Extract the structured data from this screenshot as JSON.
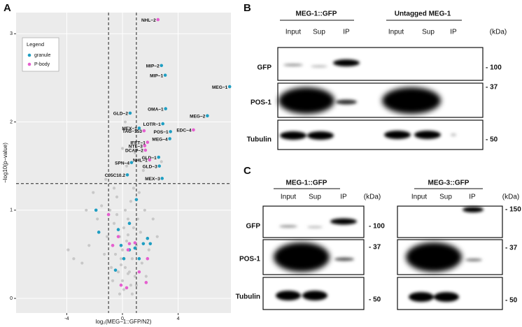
{
  "panel_labels": [
    "A",
    "B",
    "C"
  ],
  "chart_data": {
    "type": "scatter",
    "x_label": "log₂(MEG−1::GFP/N2)",
    "y_label": "−log10(p−value)",
    "xlim": [
      -7.64,
      7.79
    ],
    "ylim": [
      -0.166,
      3.24
    ],
    "xticks": [
      -4,
      0,
      4
    ],
    "yticks": [
      0,
      1,
      2,
      3
    ],
    "grid": true,
    "legend": {
      "title": "Legend",
      "position": "upper left"
    },
    "reference_lines": {
      "x": [
        -1,
        1
      ],
      "y": [
        1.301
      ]
    },
    "series": [
      {
        "name": "granule",
        "color": "#1f9ec2",
        "x": [
          7.7,
          2.8,
          3.07,
          3.1,
          6.1,
          0.55,
          2.9,
          1.2,
          3.45,
          3.4,
          2.6,
          0.65,
          2.65,
          2.85,
          0.35,
          -1.9,
          -1.7,
          -0.3,
          0.5,
          1.0,
          1.5,
          2.0,
          1.8,
          0.1,
          -0.5,
          0.5,
          1.2,
          -0.1,
          0.9
        ],
        "values": [
          2.4,
          2.64,
          2.53,
          2.15,
          2.07,
          2.1,
          1.98,
          1.93,
          1.89,
          1.81,
          1.6,
          1.54,
          1.5,
          1.36,
          1.4,
          1.0,
          0.75,
          0.78,
          0.85,
          1.12,
          0.62,
          0.62,
          0.68,
          0.45,
          0.32,
          0.55,
          0.45,
          0.6,
          0.57
        ],
        "labels": [
          "MEG−1",
          "MIP−2",
          "MIP−1",
          "OMA−1",
          "MEG−2",
          "GLD−2",
          "LOTR−1",
          "MEX−1",
          "POS−1",
          "MEG−4",
          "GLD−1",
          "SPN−4",
          "GLD−3",
          "MEX−3",
          "C05C10.2",
          null,
          null,
          null,
          null,
          null,
          null,
          null,
          null,
          null,
          null,
          null,
          null,
          null,
          null
        ]
      },
      {
        "name": "P-body",
        "color": "#e55fcf",
        "x": [
          2.55,
          5.1,
          1.55,
          1.8,
          1.65,
          1.6,
          1.95,
          -0.7,
          -0.3,
          0.5,
          0.9,
          0.4,
          1.8,
          1.7,
          -0.1,
          0.3,
          1.2,
          -1.0
        ],
        "values": [
          3.16,
          1.91,
          1.9,
          1.77,
          1.68,
          1.73,
          1.57,
          0.6,
          0.7,
          0.62,
          0.63,
          0.55,
          0.45,
          0.18,
          0.15,
          0.12,
          0.3,
          0.95
        ],
        "labels": [
          "NHL−2",
          "EDC−4",
          "TAG−153",
          "IFET−1",
          "DCAP−2",
          "NTL−3",
          "NHL−1",
          null,
          null,
          null,
          null,
          null,
          null,
          null,
          null,
          null,
          null,
          null
        ]
      }
    ],
    "background_points": {
      "color": "#c8c8c8",
      "x": [
        -3.9,
        -3.5,
        -2.9,
        -2.4,
        -2.1,
        -1.8,
        -1.5,
        -1.3,
        -1.1,
        -0.9,
        -0.8,
        -0.6,
        -0.5,
        -0.4,
        -0.3,
        -0.2,
        -0.1,
        0.0,
        0.0,
        0.1,
        0.2,
        0.2,
        0.3,
        0.4,
        0.5,
        0.6,
        0.7,
        0.8,
        0.9,
        1.0,
        1.1,
        1.3,
        1.4,
        1.6,
        1.9,
        2.2,
        2.5,
        0.1,
        -0.2,
        0.4,
        0.6,
        -0.7,
        0.8,
        1.2,
        -1.2,
        0.3,
        0.0,
        -0.4,
        0.5,
        0.2,
        1.5,
        -0.6,
        0.9,
        -2.6,
        2.8,
        0.7,
        1.0,
        -0.1,
        0.4,
        1.7
      ],
      "values": [
        0.55,
        0.45,
        0.4,
        0.6,
        1.2,
        0.9,
        1.05,
        0.5,
        0.7,
        1.0,
        0.35,
        0.85,
        0.5,
        0.95,
        0.3,
        0.7,
        0.45,
        0.2,
        0.55,
        0.8,
        0.35,
        1.0,
        0.65,
        0.9,
        0.3,
        1.1,
        0.45,
        0.8,
        0.25,
        0.6,
        0.9,
        0.75,
        0.4,
        1.0,
        0.55,
        0.9,
        0.7,
        0.1,
        0.05,
        0.28,
        0.15,
        0.2,
        1.25,
        1.2,
        1.35,
        1.5,
        1.7,
        1.15,
        1.9,
        2.0,
        1.45,
        1.25,
        1.65,
        1.0,
        1.55,
        0.05,
        0.15,
        0.38,
        0.72,
        0.25
      ]
    }
  },
  "blots": {
    "B": {
      "groups": [
        "MEG-1::GFP",
        "Untagged MEG-1"
      ],
      "lanes": [
        "Input",
        "Sup",
        "IP",
        "Input",
        "Sup",
        "IP"
      ],
      "unit": "(kDa)",
      "rows": [
        "GFP",
        "POS-1",
        "Tubulin"
      ],
      "markers": [
        "- 100",
        "- 37",
        "- 50"
      ]
    },
    "C_left": {
      "group": "MEG-1::GFP",
      "lanes": [
        "Input",
        "Sup",
        "IP"
      ],
      "unit": "(kDa)",
      "rows": [
        "GFP",
        "POS-1",
        "Tubulin"
      ],
      "markers": [
        "- 100",
        "- 37",
        "- 50"
      ]
    },
    "C_right": {
      "group": "MEG-3::GFP",
      "lanes": [
        "Input",
        "Sup",
        "IP"
      ],
      "unit": "(kDa)",
      "markers": [
        "- 150",
        "- 37",
        "- 50"
      ]
    }
  }
}
